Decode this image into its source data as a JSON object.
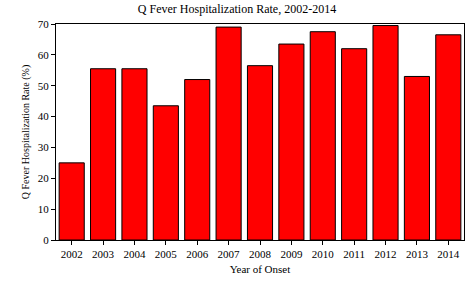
{
  "chart_data": {
    "type": "bar",
    "title": "Q Fever Hospitalization Rate, 2002-2014",
    "x_label": "Year of Onset",
    "y_label": "Q Fever Hospitalization Rate (%)",
    "categories": [
      "2002",
      "2003",
      "2004",
      "2005",
      "2006",
      "2007",
      "2008",
      "2009",
      "2010",
      "2011",
      "2012",
      "2013",
      "2014"
    ],
    "values": [
      25,
      55.5,
      55.5,
      43.5,
      52,
      69,
      56.5,
      63.5,
      67.5,
      62,
      69.5,
      53,
      66.5
    ],
    "color": "#ff0000",
    "ylim": [
      0,
      70
    ],
    "yticks": [
      0,
      10,
      20,
      30,
      40,
      50,
      60,
      70
    ],
    "grid": false
  }
}
